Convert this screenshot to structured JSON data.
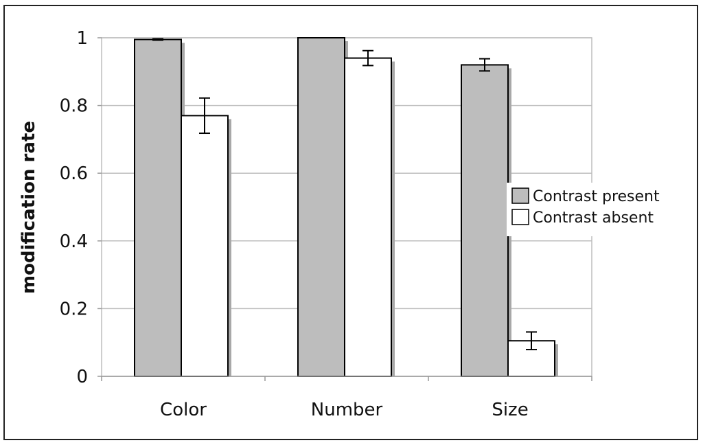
{
  "chart_data": {
    "type": "bar",
    "title": "",
    "xlabel": "",
    "ylabel": "modification rate",
    "ylim": [
      0,
      1
    ],
    "yticks": [
      0,
      0.2,
      0.4,
      0.6,
      0.8,
      1
    ],
    "ytick_labels": [
      "0",
      "0.2",
      "0.4",
      "0.6",
      "0.8",
      "1"
    ],
    "grid": true,
    "legend_position": "right",
    "categories": [
      "Color",
      "Number",
      "Size"
    ],
    "series": [
      {
        "name": "Contrast present",
        "color": "#bdbdbd",
        "values": [
          0.995,
          1.0,
          0.92
        ],
        "errors": [
          0.002,
          0.0,
          0.018
        ]
      },
      {
        "name": "Contrast absent",
        "color": "#ffffff",
        "values": [
          0.77,
          0.94,
          0.105
        ],
        "errors": [
          0.052,
          0.022,
          0.026
        ]
      }
    ]
  }
}
